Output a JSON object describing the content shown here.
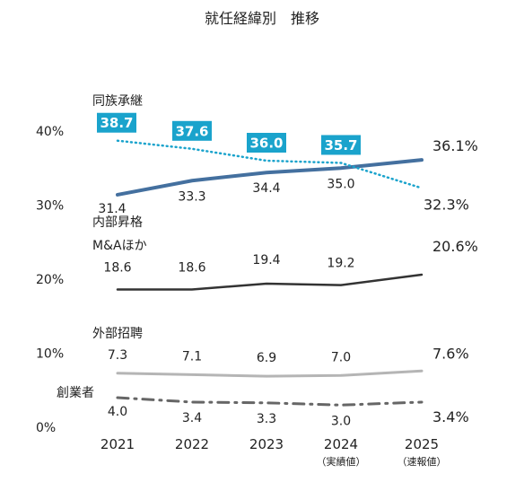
{
  "chart_data": {
    "type": "line",
    "title": "就任経緯別　推移",
    "x": [
      "2021",
      "2022",
      "2023",
      "2024",
      "2025"
    ],
    "x_sublabels": [
      "",
      "",
      "",
      "（実績値）",
      "（速報値）"
    ],
    "yticks": [
      "0%",
      "10%",
      "20%",
      "30%",
      "40%"
    ],
    "ylim": [
      0,
      40
    ],
    "grid": false,
    "series": [
      {
        "name": "同族承継",
        "style": "solid",
        "color": "#44709f",
        "values": [
          31.4,
          33.3,
          34.4,
          35.0,
          36.1
        ],
        "labels": [
          "31.4",
          "33.3",
          "34.4",
          "35.0",
          "36.1%"
        ]
      },
      {
        "name": "同族承継",
        "style": "dotted",
        "color": "#1aa3cc",
        "values": [
          38.7,
          37.6,
          36.0,
          35.7,
          32.3
        ],
        "labels": [
          "38.7",
          "37.6",
          "36.0",
          "35.7",
          "32.3%"
        ]
      },
      {
        "name": "内部昇格",
        "name_line2": "M&Aほか",
        "style": "solid",
        "color": "#333333",
        "values": [
          18.6,
          18.6,
          19.4,
          19.2,
          20.6
        ],
        "labels": [
          "18.6",
          "18.6",
          "19.4",
          "19.2",
          "20.6%"
        ]
      },
      {
        "name": "外部招聘",
        "style": "solid",
        "color": "#b5b5b5",
        "values": [
          7.3,
          7.1,
          6.9,
          7.0,
          7.6
        ],
        "labels": [
          "7.3",
          "7.1",
          "6.9",
          "7.0",
          "7.6%"
        ]
      },
      {
        "name": "創業者",
        "style": "dashdot",
        "color": "#666666",
        "values": [
          4.0,
          3.4,
          3.3,
          3.0,
          3.4
        ],
        "labels": [
          "4.0",
          "3.4",
          "3.3",
          "3.0",
          "3.4%"
        ]
      }
    ]
  }
}
